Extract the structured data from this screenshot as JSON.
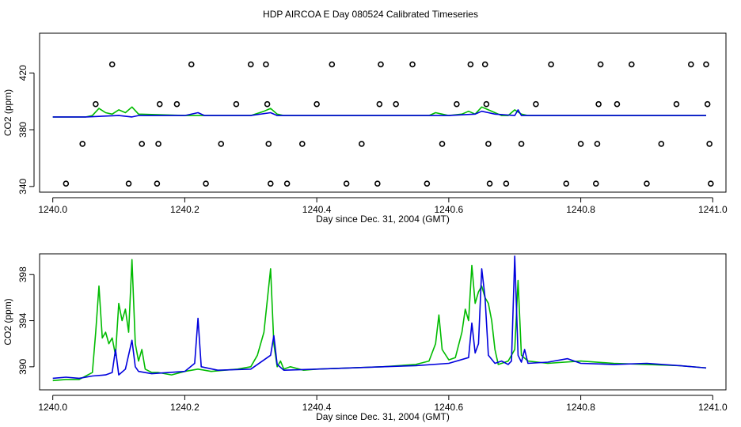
{
  "title": "HDP AIRCOA E  Day 080524  Calibrated Timeseries",
  "colors": {
    "series_a": "#00bb00",
    "series_b": "#0000dd",
    "axis": "#000000",
    "markers": "#000000"
  },
  "chart_data": [
    {
      "type": "line",
      "xlabel": "Day since Dec. 31, 2004 (GMT)",
      "ylabel": "CO2 (ppm)",
      "xlim": [
        1239.98,
        1241.02
      ],
      "ylim": [
        336,
        448
      ],
      "xticks": [
        "1240.0",
        "1240.2",
        "1240.4",
        "1240.6",
        "1240.8",
        "1241.0"
      ],
      "yticks": [
        "340",
        "380",
        "420"
      ],
      "grid": false,
      "series": [
        {
          "color": "#00bb00",
          "x": [
            1240.0,
            1240.05,
            1240.06,
            1240.07,
            1240.08,
            1240.09,
            1240.1,
            1240.11,
            1240.12,
            1240.13,
            1240.2,
            1240.3,
            1240.32,
            1240.33,
            1240.34,
            1240.35,
            1240.36,
            1240.37,
            1240.38,
            1240.5,
            1240.57,
            1240.58,
            1240.59,
            1240.6,
            1240.62,
            1240.63,
            1240.64,
            1240.65,
            1240.66,
            1240.67,
            1240.68,
            1240.69,
            1240.7,
            1240.71,
            1240.72,
            1240.8,
            1240.9,
            1240.99
          ],
          "y": [
            389,
            389,
            390,
            395,
            392,
            391,
            394,
            392,
            396,
            391,
            390,
            390,
            393,
            395,
            391,
            390,
            390,
            390,
            390,
            390,
            390,
            392,
            391,
            390,
            391,
            393,
            391,
            396,
            394,
            392,
            390,
            390,
            394,
            391,
            390,
            390,
            390,
            390
          ]
        },
        {
          "color": "#0000dd",
          "x": [
            1240.0,
            1240.05,
            1240.1,
            1240.12,
            1240.13,
            1240.2,
            1240.22,
            1240.23,
            1240.3,
            1240.33,
            1240.34,
            1240.35,
            1240.5,
            1240.6,
            1240.64,
            1240.65,
            1240.66,
            1240.67,
            1240.7,
            1240.705,
            1240.71,
            1240.8,
            1240.9,
            1240.99
          ],
          "y": [
            389,
            389,
            390,
            389,
            390,
            390,
            392,
            390,
            390,
            392,
            390,
            390,
            390,
            390,
            391,
            393,
            392,
            391,
            390,
            394,
            390,
            390,
            390,
            390
          ]
        }
      ],
      "markers": {
        "x": [
          1240.02,
          1240.045,
          1240.065,
          1240.09,
          1240.115,
          1240.135,
          1240.158,
          1240.16,
          1240.162,
          1240.188,
          1240.21,
          1240.232,
          1240.255,
          1240.278,
          1240.3,
          1240.323,
          1240.325,
          1240.327,
          1240.33,
          1240.355,
          1240.378,
          1240.4,
          1240.423,
          1240.445,
          1240.468,
          1240.492,
          1240.495,
          1240.497,
          1240.52,
          1240.545,
          1240.567,
          1240.59,
          1240.612,
          1240.633,
          1240.655,
          1240.657,
          1240.66,
          1240.662,
          1240.687,
          1240.71,
          1240.732,
          1240.755,
          1240.778,
          1240.8,
          1240.823,
          1240.825,
          1240.827,
          1240.83,
          1240.855,
          1240.877,
          1240.9,
          1240.922,
          1240.945,
          1240.967,
          1240.99,
          1240.992,
          1240.995,
          1240.997
        ],
        "y": [
          342,
          370,
          398,
          426,
          342,
          370,
          342,
          370,
          398,
          398,
          426,
          342,
          370,
          398,
          426,
          426,
          398,
          370,
          342,
          342,
          370,
          398,
          426,
          342,
          370,
          342,
          398,
          426,
          398,
          426,
          342,
          370,
          398,
          426,
          426,
          398,
          370,
          342,
          342,
          370,
          398,
          426,
          342,
          370,
          342,
          370,
          398,
          426,
          398,
          426,
          342,
          370,
          398,
          426,
          426,
          398,
          370,
          342
        ]
      }
    },
    {
      "type": "line",
      "xlabel": "Day since Dec. 31, 2004 (GMT)",
      "ylabel": "CO2 (ppm)",
      "xlim": [
        1239.98,
        1241.02
      ],
      "ylim": [
        388.0,
        399.8
      ],
      "xticks": [
        "1240.0",
        "1240.2",
        "1240.4",
        "1240.6",
        "1240.8",
        "1241.0"
      ],
      "yticks": [
        "390",
        "394",
        "398"
      ],
      "grid": false,
      "series": [
        {
          "color": "#00bb00",
          "x": [
            1240.0,
            1240.02,
            1240.04,
            1240.06,
            1240.065,
            1240.07,
            1240.075,
            1240.08,
            1240.085,
            1240.09,
            1240.095,
            1240.1,
            1240.105,
            1240.11,
            1240.115,
            1240.12,
            1240.125,
            1240.13,
            1240.135,
            1240.14,
            1240.15,
            1240.16,
            1240.18,
            1240.2,
            1240.22,
            1240.24,
            1240.26,
            1240.28,
            1240.3,
            1240.31,
            1240.32,
            1240.33,
            1240.335,
            1240.34,
            1240.345,
            1240.35,
            1240.36,
            1240.38,
            1240.4,
            1240.45,
            1240.5,
            1240.55,
            1240.57,
            1240.58,
            1240.585,
            1240.59,
            1240.6,
            1240.61,
            1240.62,
            1240.625,
            1240.63,
            1240.635,
            1240.64,
            1240.645,
            1240.65,
            1240.655,
            1240.66,
            1240.665,
            1240.67,
            1240.675,
            1240.68,
            1240.69,
            1240.7,
            1240.705,
            1240.71,
            1240.72,
            1240.75,
            1240.8,
            1240.85,
            1240.9,
            1240.95,
            1240.99
          ],
          "y": [
            388.8,
            388.9,
            388.9,
            389.5,
            393.0,
            397.0,
            392.5,
            393.0,
            392.0,
            392.5,
            391.0,
            395.5,
            394.0,
            395.0,
            393.0,
            399.3,
            392.0,
            390.5,
            391.5,
            389.8,
            389.5,
            389.5,
            389.3,
            389.6,
            389.8,
            389.6,
            389.7,
            389.8,
            390.0,
            391.0,
            393.0,
            398.5,
            392.0,
            390.0,
            390.5,
            389.8,
            390.0,
            389.7,
            389.8,
            389.9,
            390.0,
            390.2,
            390.5,
            392.0,
            394.5,
            391.5,
            390.6,
            390.8,
            393.0,
            395.0,
            394.0,
            398.8,
            395.5,
            396.5,
            397.0,
            396.0,
            395.5,
            394.0,
            391.5,
            390.2,
            390.3,
            390.5,
            391.5,
            397.5,
            391.0,
            390.5,
            390.3,
            390.5,
            390.3,
            390.2,
            390.1,
            389.9
          ]
        },
        {
          "color": "#0000dd",
          "x": [
            1240.0,
            1240.02,
            1240.04,
            1240.06,
            1240.08,
            1240.09,
            1240.095,
            1240.1,
            1240.11,
            1240.12,
            1240.125,
            1240.13,
            1240.15,
            1240.2,
            1240.215,
            1240.22,
            1240.225,
            1240.25,
            1240.3,
            1240.33,
            1240.335,
            1240.34,
            1240.35,
            1240.4,
            1240.5,
            1240.55,
            1240.6,
            1240.63,
            1240.635,
            1240.64,
            1240.645,
            1240.65,
            1240.655,
            1240.66,
            1240.67,
            1240.68,
            1240.69,
            1240.695,
            1240.7,
            1240.705,
            1240.71,
            1240.715,
            1240.72,
            1240.75,
            1240.78,
            1240.8,
            1240.85,
            1240.9,
            1240.95,
            1240.99
          ],
          "y": [
            389.0,
            389.1,
            389.0,
            389.2,
            389.3,
            389.5,
            391.5,
            389.3,
            389.8,
            392.3,
            390.0,
            389.6,
            389.4,
            389.6,
            390.3,
            394.2,
            390.0,
            389.7,
            389.8,
            391.0,
            392.7,
            390.2,
            389.7,
            389.8,
            390.0,
            390.1,
            390.3,
            390.8,
            393.8,
            391.2,
            392.0,
            398.5,
            396.0,
            391.0,
            390.3,
            390.5,
            390.2,
            390.5,
            399.6,
            391.0,
            390.4,
            391.5,
            390.3,
            390.4,
            390.7,
            390.3,
            390.2,
            390.3,
            390.1,
            389.9
          ]
        }
      ]
    }
  ]
}
